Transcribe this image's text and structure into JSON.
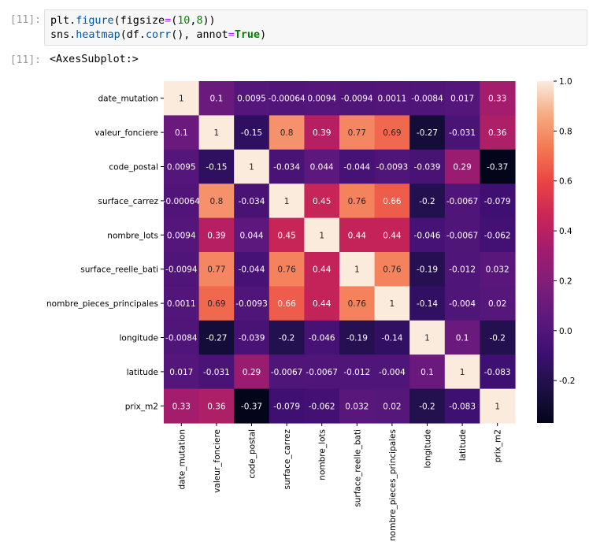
{
  "cells": {
    "input_prompt": "[11]:",
    "output_prompt": "[11]:",
    "code_line1": {
      "a": "plt.",
      "b": "figure",
      "c": "(figsize",
      "d": "=",
      "e": "(",
      "f": "10",
      "g": ",",
      "h": "8",
      "i": "))"
    },
    "code_line2": {
      "a": "sns.",
      "b": "heatmap",
      "c": "(df.",
      "d": "corr",
      "e": "(), annot",
      "f": "=",
      "g": "True",
      "h": ")"
    },
    "output_text": "<AxesSubplot:>"
  },
  "chart_data": {
    "type": "heatmap",
    "title": "",
    "categories": [
      "date_mutation",
      "valeur_fonciere",
      "code_postal",
      "surface_carrez",
      "nombre_lots",
      "surface_reelle_bati",
      "nombre_pieces_principales",
      "longitude",
      "latitude",
      "prix_m2"
    ],
    "annotations": [
      [
        "1",
        "0.1",
        "0.0095",
        "-0.00064",
        "0.0094",
        "-0.0094",
        "0.0011",
        "-0.0084",
        "0.017",
        "0.33"
      ],
      [
        "0.1",
        "1",
        "-0.15",
        "0.8",
        "0.39",
        "0.77",
        "0.69",
        "-0.27",
        "-0.031",
        "0.36"
      ],
      [
        "0.0095",
        "-0.15",
        "1",
        "-0.034",
        "0.044",
        "-0.044",
        "-0.0093",
        "-0.039",
        "0.29",
        "-0.37"
      ],
      [
        "-0.00064",
        "0.8",
        "-0.034",
        "1",
        "0.45",
        "0.76",
        "0.66",
        "-0.2",
        "-0.0067",
        "-0.079"
      ],
      [
        "0.0094",
        "0.39",
        "0.044",
        "0.45",
        "1",
        "0.44",
        "0.44",
        "-0.046",
        "-0.0067",
        "-0.062"
      ],
      [
        "-0.0094",
        "0.77",
        "-0.044",
        "0.76",
        "0.44",
        "1",
        "0.76",
        "-0.19",
        "-0.012",
        "0.032"
      ],
      [
        "0.0011",
        "0.69",
        "-0.0093",
        "0.66",
        "0.44",
        "0.76",
        "1",
        "-0.14",
        "-0.004",
        "0.02"
      ],
      [
        "-0.0084",
        "-0.27",
        "-0.039",
        "-0.2",
        "-0.046",
        "-0.19",
        "-0.14",
        "1",
        "0.1",
        "-0.2"
      ],
      [
        "0.017",
        "-0.031",
        "0.29",
        "-0.0067",
        "-0.0067",
        "-0.012",
        "-0.004",
        "0.1",
        "1",
        "-0.083"
      ],
      [
        "0.33",
        "0.36",
        "-0.37",
        "-0.079",
        "-0.062",
        "0.032",
        "0.02",
        "-0.2",
        "-0.083",
        "1"
      ]
    ],
    "colorbar": {
      "range": [
        -0.37,
        1.0
      ],
      "ticks": [
        "-0.2",
        "0.0",
        "0.2",
        "0.4",
        "0.6",
        "0.8",
        "1.0"
      ]
    },
    "colormap": "rocket",
    "grid": false
  }
}
